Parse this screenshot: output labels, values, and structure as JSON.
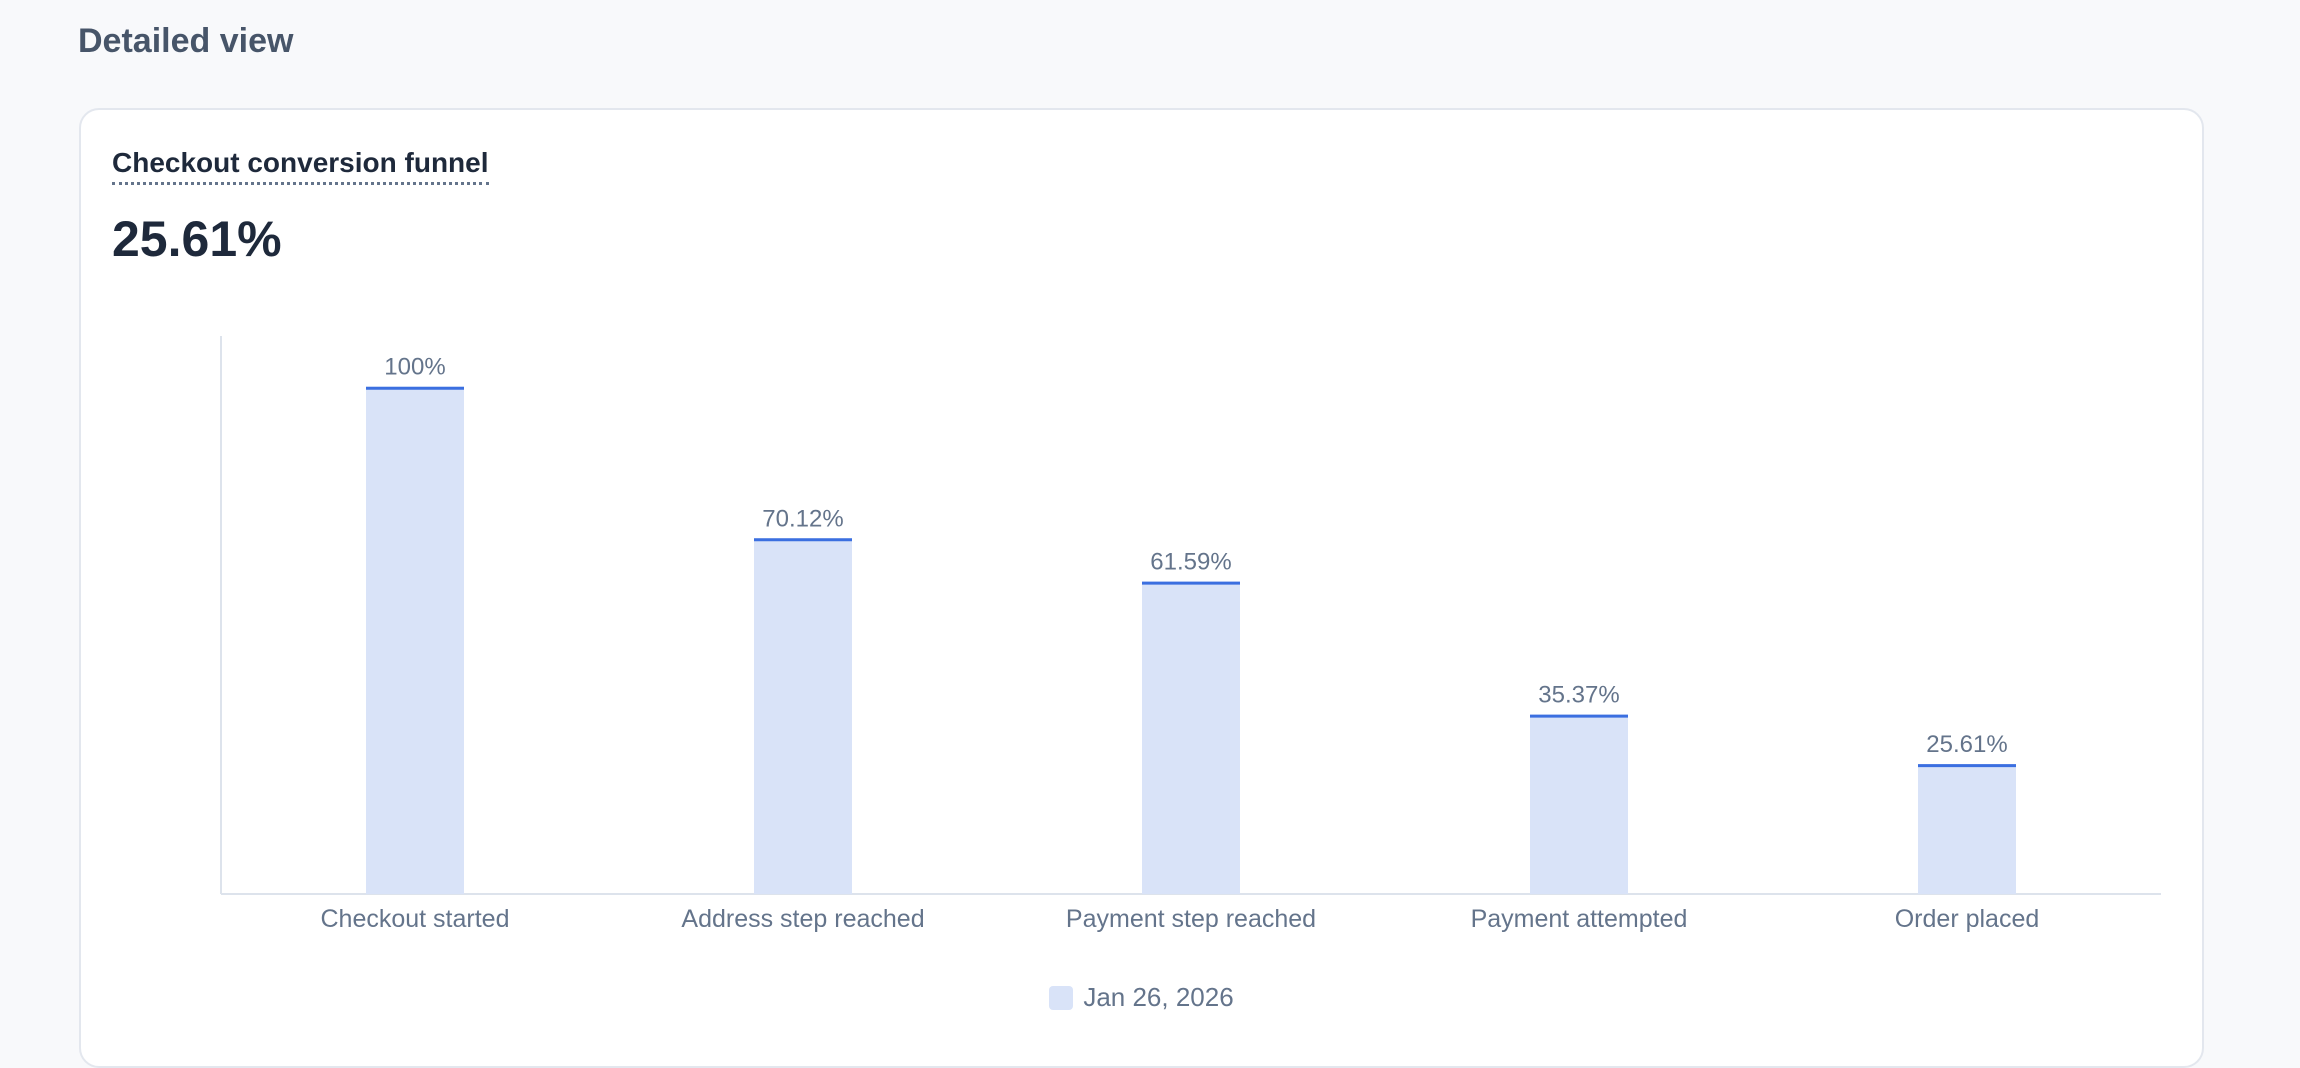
{
  "header": {
    "title": "Detailed view"
  },
  "card": {
    "title": "Checkout conversion funnel",
    "metric": "25.61%"
  },
  "colors": {
    "bar_fill": "#d9e3f8",
    "bar_top": "#3b6fe0",
    "label": "#64748b",
    "axis": "#dde3ec"
  },
  "chart_data": {
    "type": "bar",
    "categories": [
      "Checkout started",
      "Address step reached",
      "Payment step reached",
      "Payment attempted",
      "Order placed"
    ],
    "series": [
      {
        "name": "Jan 26, 2026",
        "values": [
          100,
          70.12,
          61.59,
          35.37,
          25.61
        ]
      }
    ],
    "data_labels": [
      "100%",
      "70.12%",
      "61.59%",
      "35.37%",
      "25.61%"
    ],
    "ylim": [
      0,
      110
    ],
    "grid": false,
    "legend": "bottom-center"
  }
}
